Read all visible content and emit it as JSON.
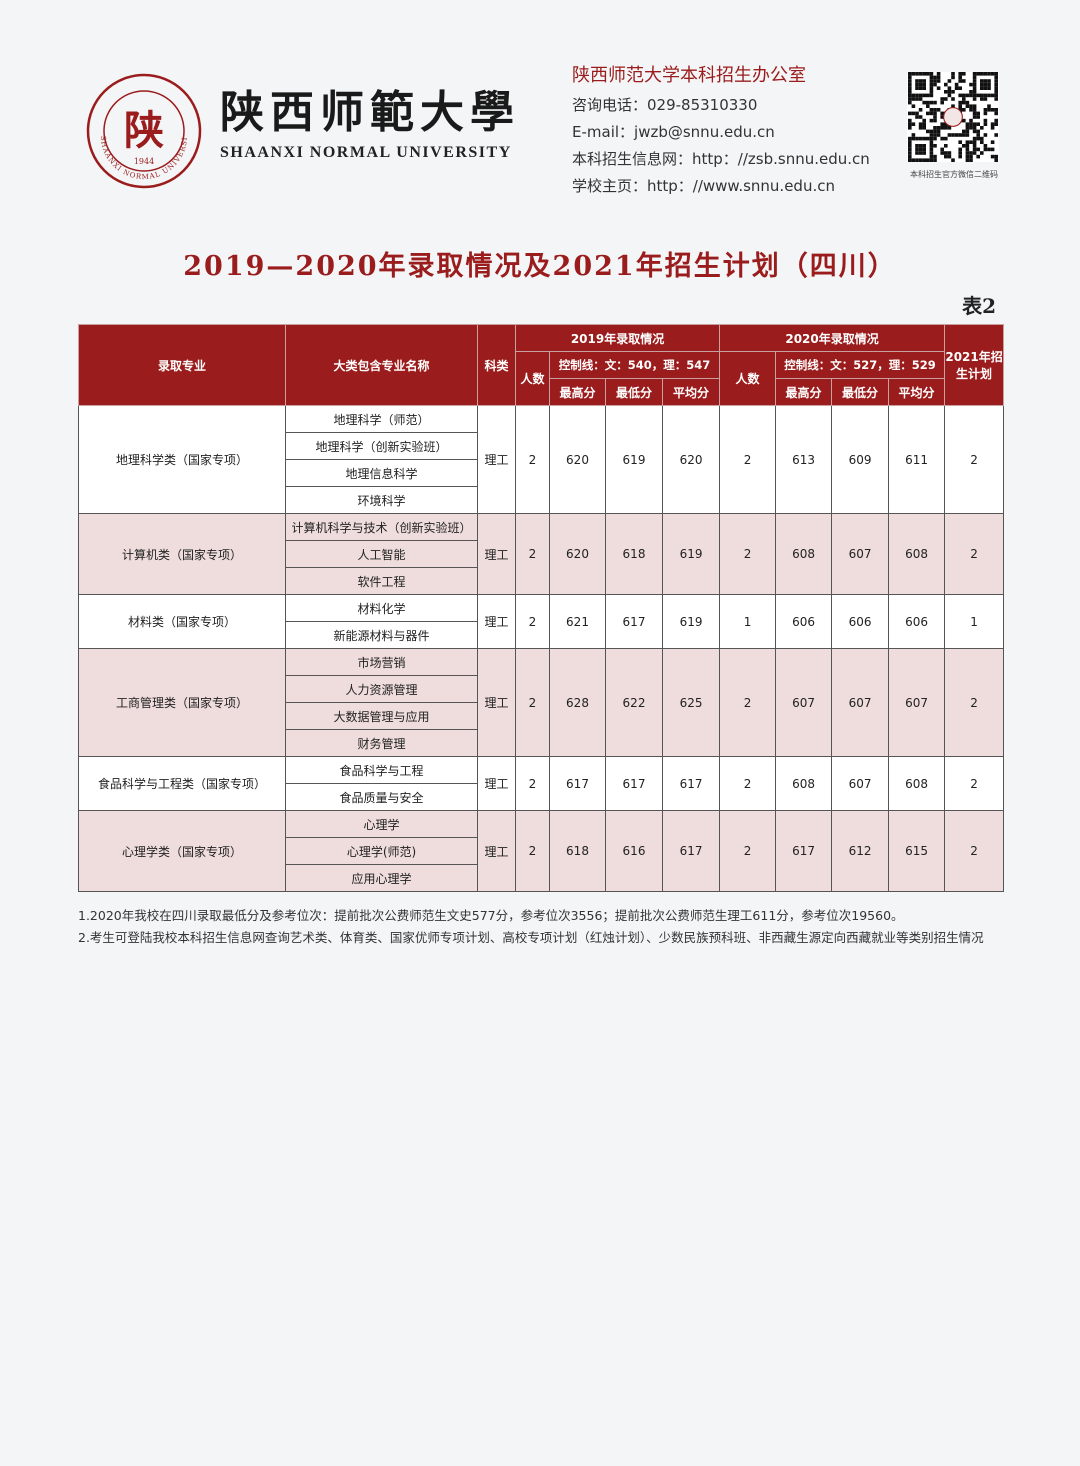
{
  "logo": {
    "center_char": "陕",
    "ring_text": "陕西师範大學 SHAANXI NORMAL UNIVERSITY",
    "year": "1944"
  },
  "wordmark": {
    "cn": "陕西师範大學",
    "en": "SHAANXI NORMAL UNIVERSITY"
  },
  "contact": {
    "office": "陕西师范大学本科招生办公室",
    "phone": "咨询电话：029-85310330",
    "email": "E-mail：jwzb@snnu.edu.cn",
    "info_site": "本科招生信息网：http：//zsb.snnu.edu.cn",
    "homepage": "学校主页：http：//www.snnu.edu.cn"
  },
  "qr_caption": "本科招生官方微信二维码",
  "title": "2019—2020年录取情况及2021年招生计划（四川）",
  "table_no": "表2",
  "colors": {
    "brand": "#9b1c1c",
    "pink_row": "#efdcdc"
  },
  "headers": {
    "major": "录取专业",
    "sub_majors": "大类包含专业名称",
    "subject": "科类",
    "y2019": "2019年录取情况",
    "y2020": "2020年录取情况",
    "count": "人数",
    "ctrl2019": "控制线：文：540，理：547",
    "ctrl2020": "控制线：文：527，理：529",
    "max": "最高分",
    "min": "最低分",
    "avg": "平均分",
    "plan2021": "2021年招生计划"
  },
  "rows": [
    {
      "major": "地理科学类（国家专项）",
      "subs": [
        "地理科学（师范）",
        "地理科学（创新实验班）",
        "地理信息科学",
        "环境科学"
      ],
      "subject": "理工",
      "c19": "2",
      "max19": "620",
      "min19": "619",
      "avg19": "620",
      "c20": "2",
      "max20": "613",
      "min20": "609",
      "avg20": "611",
      "plan21": "2"
    },
    {
      "major": "计算机类（国家专项）",
      "subs": [
        "计算机科学与技术（创新实验班）",
        "人工智能",
        "软件工程"
      ],
      "subject": "理工",
      "c19": "2",
      "max19": "620",
      "min19": "618",
      "avg19": "619",
      "c20": "2",
      "max20": "608",
      "min20": "607",
      "avg20": "608",
      "plan21": "2"
    },
    {
      "major": "材料类（国家专项）",
      "subs": [
        "材料化学",
        "新能源材料与器件"
      ],
      "subject": "理工",
      "c19": "2",
      "max19": "621",
      "min19": "617",
      "avg19": "619",
      "c20": "1",
      "max20": "606",
      "min20": "606",
      "avg20": "606",
      "plan21": "1"
    },
    {
      "major": "工商管理类（国家专项）",
      "subs": [
        "市场营销",
        "人力资源管理",
        "大数据管理与应用",
        "财务管理"
      ],
      "subject": "理工",
      "c19": "2",
      "max19": "628",
      "min19": "622",
      "avg19": "625",
      "c20": "2",
      "max20": "607",
      "min20": "607",
      "avg20": "607",
      "plan21": "2"
    },
    {
      "major": "食品科学与工程类（国家专项）",
      "subs": [
        "食品科学与工程",
        "食品质量与安全"
      ],
      "subject": "理工",
      "c19": "2",
      "max19": "617",
      "min19": "617",
      "avg19": "617",
      "c20": "2",
      "max20": "608",
      "min20": "607",
      "avg20": "608",
      "plan21": "2"
    },
    {
      "major": "心理学类（国家专项）",
      "subs": [
        "心理学",
        "心理学(师范)",
        "应用心理学"
      ],
      "subject": "理工",
      "c19": "2",
      "max19": "618",
      "min19": "616",
      "avg19": "617",
      "c20": "2",
      "max20": "617",
      "min20": "612",
      "avg20": "615",
      "plan21": "2"
    }
  ],
  "notes": [
    "1.2020年我校在四川录取最低分及参考位次：提前批次公费师范生文史577分，参考位次3556；提前批次公费师范生理工611分，参考位次19560。",
    "2.考生可登陆我校本科招生信息网查询艺术类、体育类、国家优师专项计划、高校专项计划（红烛计划）、少数民族预科班、非西藏生源定向西藏就业等类别招生情况"
  ]
}
